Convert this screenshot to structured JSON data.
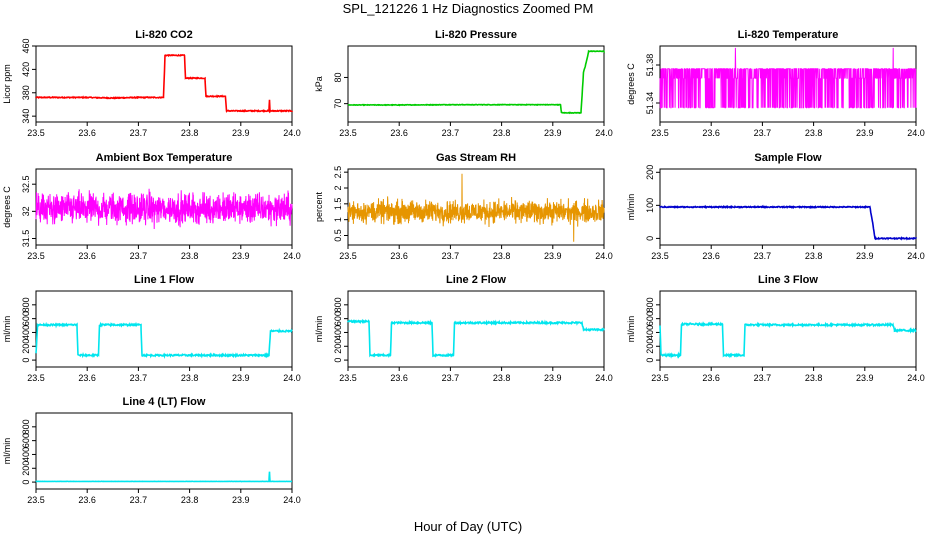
{
  "figure": {
    "title": "SPL_121226  1 Hz Diagnostics Zoomed PM",
    "xlabel": "Hour of Day (UTC)"
  },
  "chart_data": [
    {
      "type": "line",
      "title": "Li-820 CO2",
      "ylabel": "Licor ppm",
      "color": "#ff0000",
      "xlim": [
        23.5,
        24.0
      ],
      "xticks": [
        23.5,
        23.6,
        23.7,
        23.8,
        23.9,
        24.0
      ],
      "ylim": [
        330,
        460
      ],
      "yticks": [
        340,
        380,
        420,
        460
      ],
      "x": [
        23.5,
        23.55,
        23.6,
        23.65,
        23.7,
        23.749,
        23.752,
        23.79,
        23.792,
        23.83,
        23.832,
        23.87,
        23.872,
        23.955,
        23.956,
        23.957,
        23.96,
        24.0
      ],
      "y": [
        372,
        372,
        372,
        371,
        372,
        372,
        444,
        444,
        405,
        405,
        374,
        374,
        349,
        349,
        368,
        349,
        349,
        349
      ],
      "noise": 0.8
    },
    {
      "type": "line",
      "title": "Li-820 Pressure",
      "ylabel": "kPa",
      "color": "#00cc00",
      "xlim": [
        23.5,
        24.0
      ],
      "xticks": [
        23.5,
        23.6,
        23.7,
        23.8,
        23.9,
        24.0
      ],
      "ylim": [
        63,
        92
      ],
      "yticks": [
        70,
        80
      ],
      "x": [
        23.5,
        23.6,
        23.7,
        23.8,
        23.9,
        23.915,
        23.917,
        23.955,
        23.96,
        23.963,
        23.968,
        23.97,
        24.0
      ],
      "y": [
        69.5,
        69.5,
        69.6,
        69.6,
        69.6,
        69.6,
        66.5,
        66.5,
        82,
        84,
        88,
        90,
        90
      ],
      "noise": 0.1
    },
    {
      "type": "line",
      "title": "Li-820 Temperature",
      "ylabel": "degrees C",
      "color": "#ff00ff",
      "xlim": [
        23.5,
        24.0
      ],
      "xticks": [
        23.5,
        23.6,
        23.7,
        23.8,
        23.9,
        24.0
      ],
      "ylim": [
        51.32,
        51.4
      ],
      "yticks": [
        51.34,
        51.38
      ],
      "y_base": 51.366,
      "y_low": 51.335,
      "y_high": 51.376,
      "spike": 51.398,
      "pattern": "quantized-toggle"
    },
    {
      "type": "line",
      "title": "Ambient Box Temperature",
      "ylabel": "degrees C",
      "color": "#ff00ff",
      "xlim": [
        23.5,
        24.0
      ],
      "xticks": [
        23.5,
        23.6,
        23.7,
        23.8,
        23.9,
        24.0
      ],
      "ylim": [
        31.38,
        32.78
      ],
      "yticks": [
        31.5,
        32.0,
        32.5
      ],
      "y_base": 32.05,
      "noise": 0.2,
      "pattern": "noise"
    },
    {
      "type": "line",
      "title": "Gas Stream RH",
      "ylabel": "percent",
      "color": "#e69500",
      "xlim": [
        23.5,
        24.0
      ],
      "xticks": [
        23.5,
        23.6,
        23.7,
        23.8,
        23.9,
        24.0
      ],
      "ylim": [
        0.2,
        2.6
      ],
      "yticks": [
        0.5,
        1.0,
        1.5,
        2.0,
        2.5
      ],
      "y_base": 1.25,
      "noise": 0.25,
      "pattern": "noise"
    },
    {
      "type": "line",
      "title": "Sample Flow",
      "ylabel": "ml/min",
      "color": "#0000cc",
      "xlim": [
        23.5,
        24.0
      ],
      "xticks": [
        23.5,
        23.6,
        23.7,
        23.8,
        23.9,
        24.0
      ],
      "ylim": [
        -20,
        210
      ],
      "yticks": [
        0,
        100,
        200
      ],
      "x": [
        23.5,
        23.6,
        23.7,
        23.8,
        23.9,
        23.91,
        23.915,
        23.92,
        24.0
      ],
      "y": [
        95,
        95,
        95,
        95,
        95,
        95,
        50,
        0,
        0
      ],
      "noise": 1.5
    },
    {
      "type": "line",
      "title": "Line 1 Flow",
      "ylabel": "ml/min",
      "color": "#00e5ee",
      "xlim": [
        23.5,
        24.0
      ],
      "xticks": [
        23.5,
        23.6,
        23.7,
        23.8,
        23.9,
        24.0
      ],
      "ylim": [
        -100,
        1000
      ],
      "yticks": [
        0,
        200,
        400,
        600,
        800
      ],
      "x": [
        23.5,
        23.503,
        23.58,
        23.582,
        23.622,
        23.624,
        23.705,
        23.707,
        23.955,
        23.958,
        24.0
      ],
      "y": [
        100,
        510,
        510,
        70,
        70,
        510,
        510,
        70,
        70,
        420,
        420
      ],
      "noise": 12
    },
    {
      "type": "line",
      "title": "Line 2 Flow",
      "ylabel": "ml/min",
      "color": "#00e5ee",
      "xlim": [
        23.5,
        24.0
      ],
      "xticks": [
        23.5,
        23.6,
        23.7,
        23.8,
        23.9,
        24.0
      ],
      "ylim": [
        -100,
        1000
      ],
      "yticks": [
        0,
        200,
        400,
        600,
        800
      ],
      "x": [
        23.5,
        23.541,
        23.543,
        23.583,
        23.585,
        23.664,
        23.666,
        23.706,
        23.708,
        23.957,
        23.96,
        24.0
      ],
      "y": [
        560,
        560,
        70,
        70,
        540,
        540,
        70,
        70,
        540,
        540,
        440,
        440
      ],
      "noise": 12
    },
    {
      "type": "line",
      "title": "Line 3 Flow",
      "ylabel": "ml/min",
      "color": "#00e5ee",
      "xlim": [
        23.5,
        24.0
      ],
      "xticks": [
        23.5,
        23.6,
        23.7,
        23.8,
        23.9,
        24.0
      ],
      "ylim": [
        -100,
        1000
      ],
      "yticks": [
        0,
        200,
        400,
        600,
        800
      ],
      "x": [
        23.5,
        23.502,
        23.54,
        23.542,
        23.622,
        23.624,
        23.664,
        23.666,
        23.955,
        23.958,
        24.0
      ],
      "y": [
        500,
        70,
        70,
        520,
        520,
        70,
        70,
        510,
        510,
        430,
        430
      ],
      "noise": 12
    },
    {
      "type": "line",
      "title": "Line 4 (LT) Flow",
      "ylabel": "ml/min",
      "color": "#00e5ee",
      "xlim": [
        23.5,
        24.0
      ],
      "xticks": [
        23.5,
        23.6,
        23.7,
        23.8,
        23.9,
        24.0
      ],
      "ylim": [
        -100,
        1000
      ],
      "yticks": [
        0,
        200,
        400,
        600,
        800
      ],
      "x": [
        23.5,
        23.6,
        23.7,
        23.8,
        23.9,
        23.955,
        23.956,
        23.957,
        23.958,
        24.0
      ],
      "y": [
        10,
        10,
        10,
        10,
        10,
        10,
        150,
        10,
        10,
        10
      ],
      "noise": 1
    }
  ]
}
